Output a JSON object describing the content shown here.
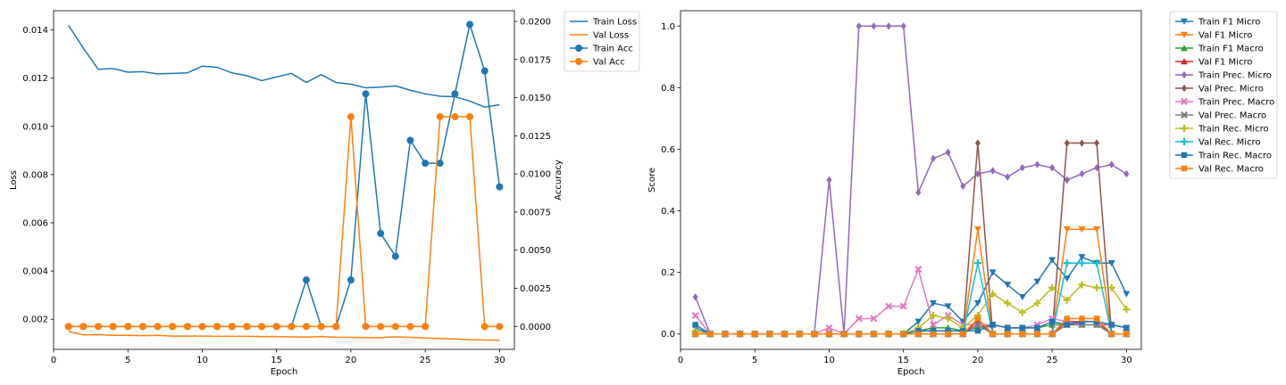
{
  "chart_data": [
    {
      "type": "line",
      "xlabel": "Epoch",
      "ylabel": "Loss",
      "y2label": "Accuracy",
      "xlim": [
        0,
        31
      ],
      "ylim": [
        0.00075,
        0.0148
      ],
      "y2lim": [
        -0.0015,
        0.0207
      ],
      "xticks": [
        0,
        5,
        10,
        15,
        20,
        25,
        30
      ],
      "yticks": [
        0.002,
        0.004,
        0.006,
        0.008,
        0.01,
        0.012,
        0.014
      ],
      "yticklabels": [
        "0.002",
        "0.004",
        "0.006",
        "0.008",
        "0.010",
        "0.012",
        "0.014"
      ],
      "y2ticks": [
        0,
        0.0025,
        0.005,
        0.0075,
        0.01,
        0.0125,
        0.015,
        0.0175,
        0.02
      ],
      "y2ticklabels": [
        "0.0000",
        "0.0025",
        "0.0050",
        "0.0075",
        "0.0100",
        "0.0125",
        "0.0150",
        "0.0175",
        "0.0200"
      ],
      "grid": false,
      "legend_position": "outside-right",
      "x": [
        1,
        2,
        3,
        4,
        5,
        6,
        7,
        8,
        9,
        10,
        11,
        12,
        13,
        14,
        15,
        16,
        17,
        18,
        19,
        20,
        21,
        22,
        23,
        24,
        25,
        26,
        27,
        28,
        29,
        30
      ],
      "series": [
        {
          "name": "Train Loss",
          "axis": "left",
          "color": "#1f77b4",
          "marker": "none",
          "values": [
            0.0142,
            0.01325,
            0.01237,
            0.0124,
            0.01225,
            0.01227,
            0.01218,
            0.0122,
            0.01222,
            0.0125,
            0.01245,
            0.01222,
            0.0121,
            0.0119,
            0.01205,
            0.0122,
            0.01182,
            0.01215,
            0.01182,
            0.01175,
            0.0116,
            0.01163,
            0.01168,
            0.0115,
            0.01135,
            0.01125,
            0.01123,
            0.01105,
            0.0108,
            0.0109
          ]
        },
        {
          "name": "Val Loss",
          "axis": "left",
          "color": "#ff7f0e",
          "marker": "none",
          "values": [
            0.0015,
            0.00135,
            0.00136,
            0.00133,
            0.00133,
            0.00132,
            0.00133,
            0.0013,
            0.0013,
            0.0013,
            0.00129,
            0.00129,
            0.00129,
            0.00128,
            0.00128,
            0.00127,
            0.00126,
            0.00128,
            0.00125,
            0.00125,
            0.00124,
            0.00124,
            0.00127,
            0.00125,
            0.00122,
            0.0012,
            0.00118,
            0.00115,
            0.00114,
            0.00113
          ]
        },
        {
          "name": "Train Acc",
          "axis": "right",
          "color": "#1f77b4",
          "marker": "circle",
          "values": [
            0,
            0,
            0,
            0,
            0,
            0,
            0,
            0,
            0,
            0,
            0,
            0,
            0,
            0,
            0,
            0,
            0.00305,
            0,
            0,
            0.00305,
            0.01525,
            0.0061,
            0.0046,
            0.0122,
            0.0107,
            0.0107,
            0.01525,
            0.0198,
            0.01675,
            0.00915
          ]
        },
        {
          "name": "Val Acc",
          "axis": "right",
          "color": "#ff7f0e",
          "marker": "circle",
          "values": [
            0,
            0,
            0,
            0,
            0,
            0,
            0,
            0,
            0,
            0,
            0,
            0,
            0,
            0,
            0,
            0,
            0,
            0,
            0,
            0.01375,
            0,
            0,
            0,
            0,
            0,
            0.01375,
            0.01375,
            0.01375,
            0,
            0
          ]
        }
      ]
    },
    {
      "type": "line",
      "xlabel": "Epoch",
      "ylabel": "Score",
      "xlim": [
        0,
        31
      ],
      "ylim": [
        -0.05,
        1.05
      ],
      "xticks": [
        0,
        5,
        10,
        15,
        20,
        25,
        30
      ],
      "yticks": [
        0,
        0.2,
        0.4,
        0.6,
        0.8,
        1.0
      ],
      "yticklabels": [
        "0.0",
        "0.2",
        "0.4",
        "0.6",
        "0.8",
        "1.0"
      ],
      "grid": false,
      "legend_position": "outside-right",
      "x": [
        1,
        2,
        3,
        4,
        5,
        6,
        7,
        8,
        9,
        10,
        11,
        12,
        13,
        14,
        15,
        16,
        17,
        18,
        19,
        20,
        21,
        22,
        23,
        24,
        25,
        26,
        27,
        28,
        29,
        30
      ],
      "series": [
        {
          "name": "Train F1 Micro",
          "color": "#1f77b4",
          "marker": "tri_down",
          "values": [
            0.02,
            0,
            0,
            0,
            0,
            0,
            0,
            0,
            0,
            0,
            0,
            0,
            0,
            0,
            0,
            0.04,
            0.1,
            0.09,
            0.04,
            0.1,
            0.2,
            0.16,
            0.12,
            0.17,
            0.24,
            0.18,
            0.25,
            0.23,
            0.23,
            0.13
          ]
        },
        {
          "name": "Val F1 Micro",
          "color": "#ff7f0e",
          "marker": "tri_down",
          "values": [
            0,
            0,
            0,
            0,
            0,
            0,
            0,
            0,
            0,
            0,
            0,
            0,
            0,
            0,
            0,
            0,
            0,
            0,
            0,
            0.34,
            0,
            0,
            0,
            0,
            0,
            0.34,
            0.34,
            0.34,
            0,
            0
          ]
        },
        {
          "name": "Train F1 Macro",
          "color": "#2ca02c",
          "marker": "tri_up",
          "values": [
            0.01,
            0,
            0,
            0,
            0,
            0,
            0,
            0,
            0,
            0,
            0,
            0,
            0,
            0,
            0,
            0.01,
            0.02,
            0.02,
            0.01,
            0.02,
            0.03,
            0.02,
            0.02,
            0.02,
            0.03,
            0.03,
            0.03,
            0.03,
            0.03,
            0.02
          ]
        },
        {
          "name": "Val F1 Micro",
          "color": "#d62728",
          "marker": "tri_up",
          "values": [
            0,
            0,
            0,
            0,
            0,
            0,
            0,
            0,
            0,
            0,
            0,
            0,
            0,
            0,
            0,
            0,
            0,
            0,
            0,
            0.04,
            0,
            0,
            0,
            0,
            0,
            0.04,
            0.04,
            0.04,
            0,
            0
          ]
        },
        {
          "name": "Train Prec. Micro",
          "color": "#9467bd",
          "marker": "diamond",
          "values": [
            0.12,
            0,
            0,
            0,
            0,
            0,
            0,
            0,
            0,
            0.5,
            0,
            1.0,
            1.0,
            1.0,
            1.0,
            0.46,
            0.57,
            0.59,
            0.48,
            0.52,
            0.53,
            0.51,
            0.54,
            0.55,
            0.54,
            0.5,
            0.52,
            0.54,
            0.55,
            0.52
          ]
        },
        {
          "name": "Val Prec. Micro",
          "color": "#8c564b",
          "marker": "diamond",
          "values": [
            0,
            0,
            0,
            0,
            0,
            0,
            0,
            0,
            0,
            0,
            0,
            0,
            0,
            0,
            0,
            0,
            0,
            0,
            0,
            0.62,
            0,
            0,
            0,
            0,
            0,
            0.62,
            0.62,
            0.62,
            0,
            0
          ]
        },
        {
          "name": "Train Prec. Macro",
          "color": "#e377c2",
          "marker": "x",
          "values": [
            0.06,
            0,
            0,
            0,
            0,
            0,
            0,
            0,
            0,
            0.02,
            0,
            0.05,
            0.05,
            0.09,
            0.09,
            0.21,
            0.03,
            0.06,
            0.03,
            0.03,
            0.03,
            0.02,
            0.02,
            0.03,
            0.05,
            0.04,
            0.03,
            0.03,
            0.03,
            0.02
          ]
        },
        {
          "name": "Val Prec. Macro",
          "color": "#7f7f7f",
          "marker": "x",
          "values": [
            0,
            0,
            0,
            0,
            0,
            0,
            0,
            0,
            0,
            0,
            0,
            0,
            0,
            0,
            0,
            0,
            0,
            0,
            0,
            0.03,
            0,
            0,
            0,
            0,
            0,
            0.03,
            0.03,
            0.03,
            0,
            0
          ]
        },
        {
          "name": "Train Rec. Micro",
          "color": "#bcbd22",
          "marker": "plus",
          "values": [
            0.01,
            0,
            0,
            0,
            0,
            0,
            0,
            0,
            0,
            0,
            0,
            0,
            0,
            0,
            0,
            0.02,
            0.06,
            0.05,
            0.02,
            0.06,
            0.13,
            0.1,
            0.07,
            0.1,
            0.15,
            0.11,
            0.16,
            0.15,
            0.15,
            0.08
          ]
        },
        {
          "name": "Val Rec. Micro",
          "color": "#17becf",
          "marker": "plus",
          "values": [
            0,
            0,
            0,
            0,
            0,
            0,
            0,
            0,
            0,
            0,
            0,
            0,
            0,
            0,
            0,
            0,
            0,
            0,
            0,
            0.23,
            0,
            0,
            0,
            0,
            0,
            0.23,
            0.23,
            0.23,
            0,
            0
          ]
        },
        {
          "name": "Train Rec. Macro",
          "color": "#1f77b4",
          "marker": "square",
          "values": [
            0.03,
            0,
            0,
            0,
            0,
            0,
            0,
            0,
            0,
            0,
            0,
            0,
            0,
            0,
            0,
            0.01,
            0.01,
            0.01,
            0.01,
            0.01,
            0.03,
            0.02,
            0.02,
            0.02,
            0.04,
            0.03,
            0.04,
            0.04,
            0.03,
            0.02
          ]
        },
        {
          "name": "Val Rec. Macro",
          "color": "#ff7f0e",
          "marker": "square",
          "values": [
            0,
            0,
            0,
            0,
            0,
            0,
            0,
            0,
            0,
            0,
            0,
            0,
            0,
            0,
            0,
            0,
            0,
            0,
            0,
            0.05,
            0,
            0,
            0,
            0,
            0,
            0.05,
            0.05,
            0.05,
            0,
            0
          ]
        }
      ]
    }
  ]
}
